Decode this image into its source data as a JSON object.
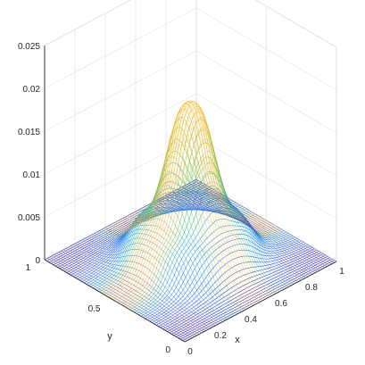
{
  "chart_data": {
    "type": "surface",
    "title": "",
    "xlabel": "x",
    "ylabel": "y",
    "zlabel": "",
    "xlim": [
      0,
      1
    ],
    "ylim": [
      0,
      1
    ],
    "zlim": [
      0,
      0.025
    ],
    "x_ticks": [
      "0",
      "0.2",
      "0.4",
      "0.6",
      "0.8",
      "1"
    ],
    "y_ticks": [
      "0",
      "0.5",
      "1"
    ],
    "z_ticks": [
      "0",
      "0.005",
      "0.01",
      "0.015",
      "0.02",
      "0.025"
    ],
    "grid": true,
    "colormap": "parula",
    "colormap_stops": [
      "#3e26a8",
      "#2e6cf5",
      "#17a9e0",
      "#2cc08f",
      "#9cc63a",
      "#f6b93a",
      "#f9fb15"
    ],
    "surface_summary": {
      "peak_z": 0.0205,
      "peak_location": [
        0.5,
        0.5
      ],
      "edge_z": 0.0,
      "side_shoulder_z": 0.006
    }
  }
}
